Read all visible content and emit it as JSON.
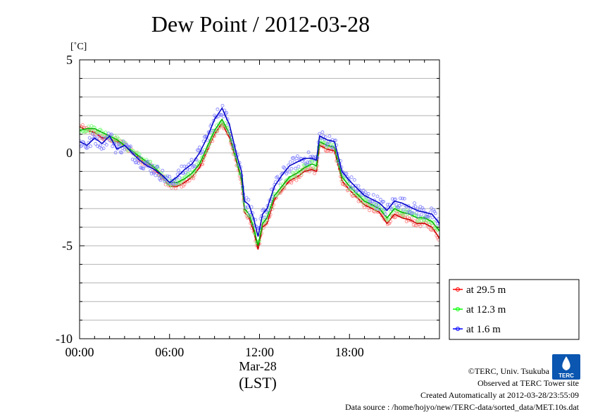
{
  "chart_data": {
    "type": "line",
    "title": "Dew Point / 2012-03-28",
    "ylabel": "[˚C]",
    "xlabel": "(LST)",
    "x_date_label": "Mar-28",
    "xlim": [
      0,
      24
    ],
    "ylim": [
      -10,
      5
    ],
    "x_ticks": [
      {
        "value": 0,
        "label": "00:00"
      },
      {
        "value": 6,
        "label": "06:00"
      },
      {
        "value": 12,
        "label": "12:00"
      },
      {
        "value": 18,
        "label": "18:00"
      }
    ],
    "y_ticks": [
      {
        "value": 5,
        "label": "5"
      },
      {
        "value": 0,
        "label": "0"
      },
      {
        "value": -5,
        "label": "-5"
      },
      {
        "value": -10,
        "label": "-10"
      }
    ],
    "grid": true,
    "legend_position": "right",
    "series": [
      {
        "name": "at 29.5 m",
        "color": "#ff0000",
        "x": [
          0,
          0.5,
          1,
          1.5,
          2,
          2.5,
          3,
          3.5,
          4,
          4.5,
          5,
          5.5,
          6,
          6.5,
          7,
          7.5,
          8,
          8.5,
          9,
          9.5,
          10,
          10.5,
          10.8,
          11,
          11.3,
          11.6,
          11.9,
          12.2,
          12.5,
          13,
          13.5,
          14,
          14.5,
          15,
          15.5,
          15.8,
          16,
          16.5,
          17,
          17.5,
          18,
          18.5,
          19,
          19.5,
          20,
          20.5,
          21,
          21.5,
          22,
          22.5,
          23,
          23.5,
          24
        ],
        "y": [
          1.4,
          1.2,
          1.1,
          0.8,
          0.8,
          0.6,
          0.4,
          0.1,
          -0.3,
          -0.6,
          -0.9,
          -1.3,
          -1.8,
          -1.8,
          -1.6,
          -1.3,
          -0.8,
          0.1,
          1.0,
          1.6,
          0.8,
          -0.6,
          -1.5,
          -3.2,
          -3.5,
          -4.2,
          -5.2,
          -4.0,
          -3.8,
          -2.5,
          -2.0,
          -1.5,
          -1.3,
          -1.0,
          -0.9,
          -1.0,
          0.4,
          0.2,
          0.1,
          -1.5,
          -2.0,
          -2.4,
          -2.8,
          -3.0,
          -3.2,
          -3.8,
          -3.3,
          -3.5,
          -3.6,
          -3.8,
          -3.8,
          -4.0,
          -4.6
        ]
      },
      {
        "name": "at 12.3 m",
        "color": "#00ff00",
        "x": [
          0,
          0.5,
          1,
          1.5,
          2,
          2.5,
          3,
          3.5,
          4,
          4.5,
          5,
          5.5,
          6,
          6.5,
          7,
          7.5,
          8,
          8.5,
          9,
          9.5,
          10,
          10.5,
          10.8,
          11,
          11.3,
          11.6,
          11.9,
          12.2,
          12.5,
          13,
          13.5,
          14,
          14.5,
          15,
          15.5,
          15.8,
          16,
          16.5,
          17,
          17.5,
          18,
          18.5,
          19,
          19.5,
          20,
          20.5,
          21,
          21.5,
          22,
          22.5,
          23,
          23.5,
          24
        ],
        "y": [
          1.2,
          1.3,
          1.3,
          1.1,
          0.9,
          0.7,
          0.4,
          0.1,
          -0.2,
          -0.5,
          -0.8,
          -1.2,
          -1.6,
          -1.6,
          -1.4,
          -1.1,
          -0.6,
          0.3,
          1.2,
          1.8,
          1.0,
          -0.5,
          -1.4,
          -3.0,
          -3.3,
          -4.0,
          -5.0,
          -3.8,
          -3.5,
          -2.3,
          -1.8,
          -1.3,
          -1.1,
          -0.8,
          -0.6,
          -0.7,
          0.6,
          0.4,
          0.3,
          -1.3,
          -1.8,
          -2.2,
          -2.6,
          -2.8,
          -3.0,
          -3.5,
          -3.0,
          -3.2,
          -3.3,
          -3.5,
          -3.5,
          -3.7,
          -4.2
        ]
      },
      {
        "name": "at 1.6 m",
        "color": "#0000ff",
        "x": [
          0,
          0.5,
          1,
          1.5,
          2,
          2.5,
          3,
          3.5,
          4,
          4.5,
          5,
          5.5,
          6,
          6.5,
          7,
          7.5,
          8,
          8.5,
          9,
          9.5,
          10,
          10.5,
          10.8,
          11,
          11.3,
          11.6,
          11.9,
          12.2,
          12.5,
          13,
          13.5,
          14,
          14.5,
          15,
          15.5,
          15.8,
          16,
          16.5,
          17,
          17.5,
          18,
          18.5,
          19,
          19.5,
          20,
          20.5,
          21,
          21.5,
          22,
          22.5,
          23,
          23.5,
          24
        ],
        "y": [
          0.6,
          0.4,
          0.8,
          0.5,
          0.9,
          0.2,
          0.4,
          0.0,
          -0.4,
          -0.7,
          -0.9,
          -1.2,
          -1.6,
          -1.3,
          -0.9,
          -0.6,
          0.0,
          0.8,
          1.8,
          2.4,
          1.5,
          -0.2,
          -1.0,
          -2.6,
          -2.8,
          -3.5,
          -4.5,
          -3.3,
          -3.0,
          -1.8,
          -1.2,
          -0.7,
          -0.5,
          -0.3,
          -0.3,
          -0.4,
          0.9,
          0.7,
          0.6,
          -1.0,
          -1.5,
          -1.9,
          -2.3,
          -2.5,
          -2.7,
          -3.1,
          -2.6,
          -2.7,
          -2.9,
          -3.1,
          -3.2,
          -3.3,
          -3.8
        ]
      }
    ]
  },
  "credits": {
    "copyright": "©TERC, Univ. Tsukuba",
    "observed": "Observed at TERC Tower site",
    "created": "Created Automatically at 2012-03-28/23:55:09",
    "source": "Data source : /home/hojyo/new/TERC-data/sorted_data/MET.10s.dat",
    "logo_text": "TERC"
  }
}
